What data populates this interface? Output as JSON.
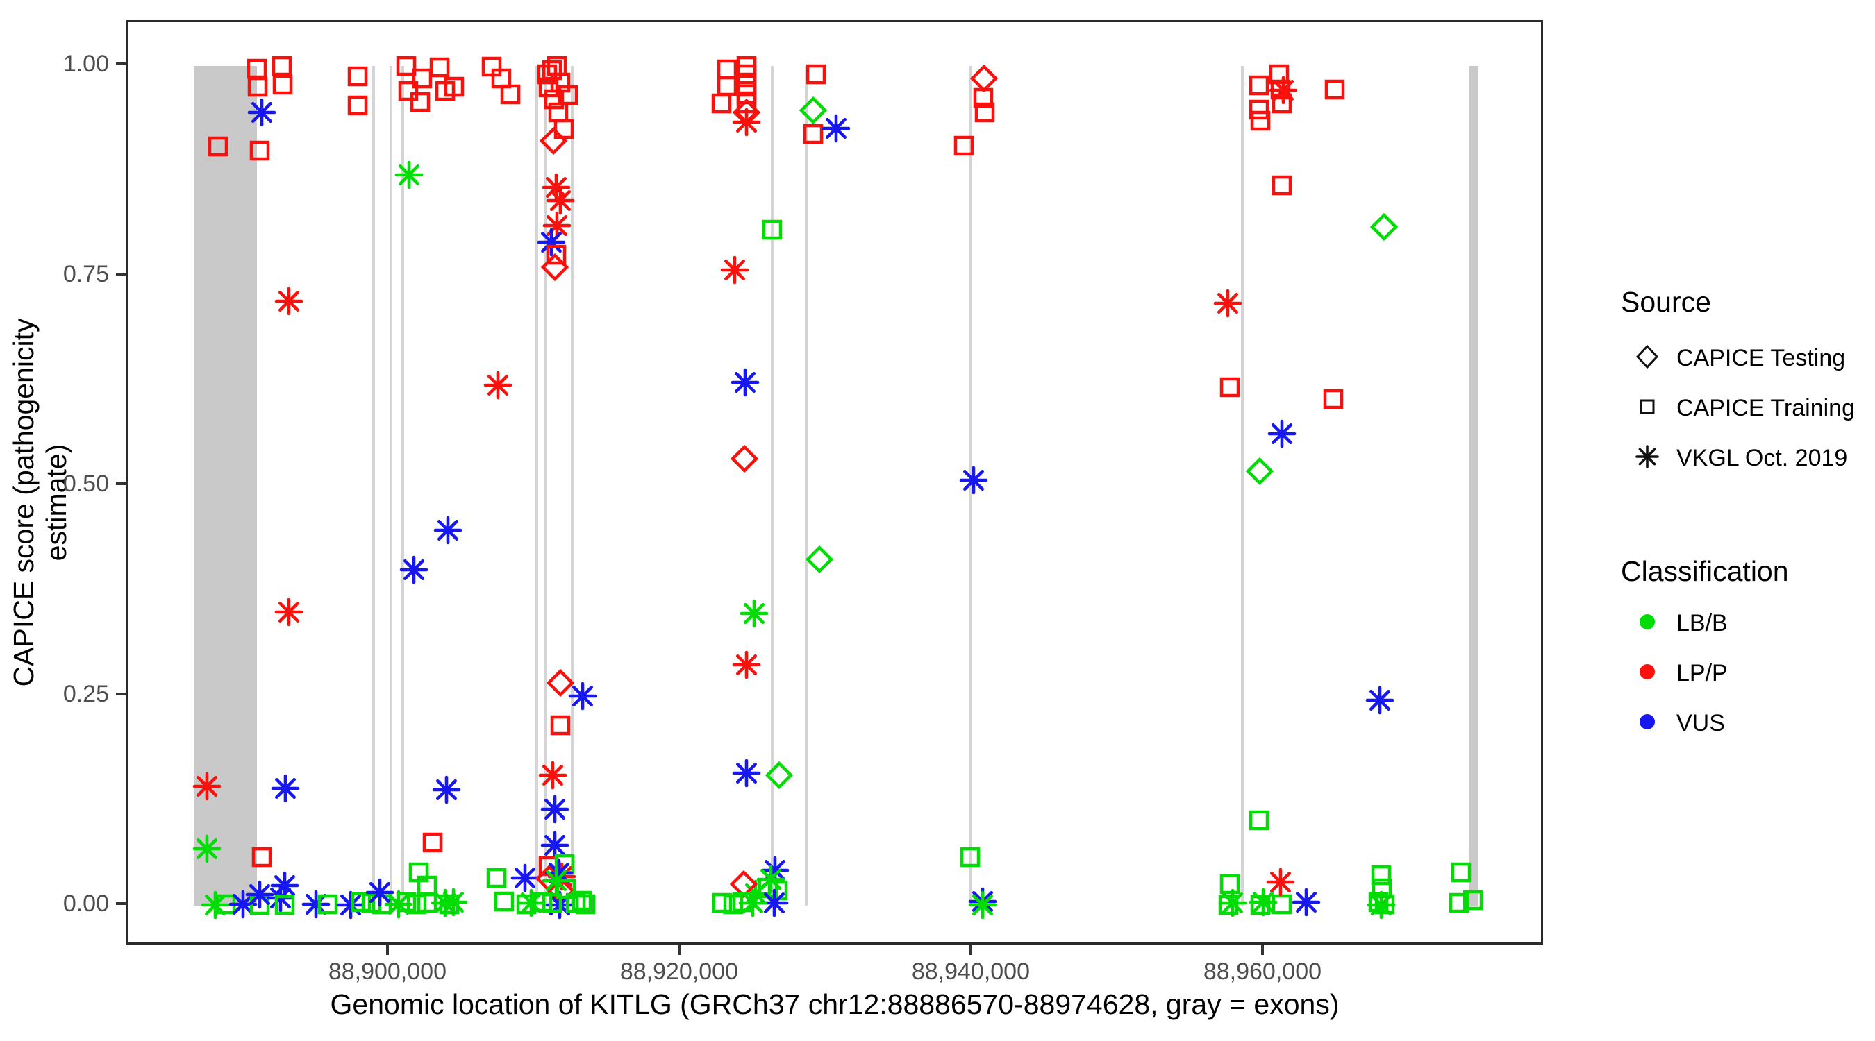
{
  "chart_data": {
    "type": "scatter",
    "xlabel": "Genomic location of KITLG (GRCh37 chr12:88886570-88974628, gray = exons)",
    "ylabel": "CAPICE score (pathogenicity estimate)",
    "x_domain": [
      88882100,
      88979240
    ],
    "y_domain": [
      0,
      1
    ],
    "x_ticks": [
      {
        "value": 88900000,
        "label": "88,900,000"
      },
      {
        "value": 88920000,
        "label": "88,920,000"
      },
      {
        "value": 88940000,
        "label": "88,940,000"
      },
      {
        "value": 88960000,
        "label": "88,960,000"
      }
    ],
    "y_ticks": [
      {
        "value": 0.0,
        "label": "0.00"
      },
      {
        "value": 0.25,
        "label": "0.25"
      },
      {
        "value": 0.5,
        "label": "0.50"
      },
      {
        "value": 0.75,
        "label": "0.75"
      },
      {
        "value": 1.0,
        "label": "1.00"
      }
    ],
    "grid": false,
    "legend_position": "right",
    "exon_note": "gray = exons",
    "exon_bands": [
      [
        88886570,
        88890900
      ],
      [
        88974030,
        88974650
      ]
    ],
    "exon_lines": [
      88898900,
      88900095,
      88900905,
      88910095,
      88910714,
      88912524,
      88926238,
      88928571,
      88939857,
      88958476
    ],
    "shape_key": {
      "sq": "CAPICE Training",
      "di": "CAPICE Testing",
      "as": "VKGL Oct. 2019"
    },
    "class_key": {
      "g": "LB/B",
      "r": "LP/P",
      "b": "VUS"
    },
    "colors": {
      "g": "#00dc04",
      "r": "#f8110d",
      "b": "#1717ef",
      "band": "#c9c9c9",
      "line": "#d4d4d4",
      "axis_text": "#4d4d4d",
      "border": "#2b2b2b"
    },
    "points": [
      [
        88887460,
        0.142,
        "as",
        "r"
      ],
      [
        88887460,
        0.068,
        "as",
        "g"
      ],
      [
        88888230,
        0.904,
        "sq",
        "r"
      ],
      [
        88888070,
        0.001,
        "as",
        "g"
      ],
      [
        88888780,
        0.002,
        "sq",
        "g"
      ],
      [
        88889970,
        0.002,
        "as",
        "b"
      ],
      [
        88890930,
        0.997,
        "sq",
        "r"
      ],
      [
        88890980,
        0.975,
        "sq",
        "r"
      ],
      [
        88891220,
        0.945,
        "as",
        "b"
      ],
      [
        88891120,
        0.899,
        "sq",
        "r"
      ],
      [
        88891250,
        0.058,
        "sq",
        "r"
      ],
      [
        88891110,
        0.001,
        "sq",
        "g"
      ],
      [
        88891110,
        0.013,
        "as",
        "b"
      ],
      [
        88892600,
        1.0,
        "sq",
        "r"
      ],
      [
        88892690,
        0.978,
        "sq",
        "r"
      ],
      [
        88893100,
        0.72,
        "as",
        "r"
      ],
      [
        88893100,
        0.35,
        "as",
        "r"
      ],
      [
        88892860,
        0.14,
        "as",
        "b"
      ],
      [
        88892820,
        0.024,
        "as",
        "b"
      ],
      [
        88892540,
        0.009,
        "as",
        "b"
      ],
      [
        88892820,
        0.001,
        "sq",
        "g"
      ],
      [
        88894960,
        0.002,
        "as",
        "b"
      ],
      [
        88895760,
        0.002,
        "sq",
        "g"
      ],
      [
        88897810,
        0.988,
        "sq",
        "r"
      ],
      [
        88897810,
        0.953,
        "sq",
        "r"
      ],
      [
        88897330,
        0.001,
        "as",
        "b"
      ],
      [
        88898050,
        0.004,
        "sq",
        "g"
      ],
      [
        88898760,
        0.003,
        "sq",
        "g"
      ],
      [
        88899470,
        0.002,
        "sq",
        "g"
      ],
      [
        88899330,
        0.016,
        "as",
        "b"
      ],
      [
        88900620,
        0.002,
        "as",
        "g"
      ],
      [
        88901140,
        0.004,
        "sq",
        "g"
      ],
      [
        88901850,
        0.002,
        "sq",
        "g"
      ],
      [
        88902560,
        0.003,
        "sq",
        "g"
      ],
      [
        88902000,
        0.04,
        "sq",
        "g"
      ],
      [
        88902570,
        0.024,
        "sq",
        "g"
      ],
      [
        88902950,
        0.075,
        "sq",
        "r"
      ],
      [
        88901330,
        0.87,
        "as",
        "g"
      ],
      [
        88901140,
        1.0,
        "sq",
        "r"
      ],
      [
        88901300,
        0.97,
        "sq",
        "r"
      ],
      [
        88902230,
        0.985,
        "sq",
        "r"
      ],
      [
        88902090,
        0.957,
        "sq",
        "r"
      ],
      [
        88901660,
        0.4,
        "as",
        "b"
      ],
      [
        88903900,
        0.138,
        "as",
        "b"
      ],
      [
        88903800,
        0.003,
        "as",
        "g"
      ],
      [
        88904100,
        0.002,
        "sq",
        "g"
      ],
      [
        88904400,
        0.004,
        "as",
        "g"
      ],
      [
        88904000,
        0.447,
        "as",
        "b"
      ],
      [
        88903420,
        0.998,
        "sq",
        "r"
      ],
      [
        88903800,
        0.97,
        "sq",
        "r"
      ],
      [
        88904420,
        0.975,
        "sq",
        "r"
      ],
      [
        88907000,
        0.999,
        "sq",
        "r"
      ],
      [
        88907660,
        0.985,
        "sq",
        "r"
      ],
      [
        88908280,
        0.966,
        "sq",
        "r"
      ],
      [
        88907430,
        0.62,
        "as",
        "r"
      ],
      [
        88907330,
        0.033,
        "sq",
        "g"
      ],
      [
        88907850,
        0.005,
        "sq",
        "g"
      ],
      [
        88909280,
        0.033,
        "as",
        "b"
      ],
      [
        88909400,
        0.002,
        "sq",
        "g"
      ],
      [
        88909700,
        0.003,
        "as",
        "g"
      ],
      [
        88910810,
        0.99,
        "sq",
        "r"
      ],
      [
        88910910,
        0.974,
        "sq",
        "r"
      ],
      [
        88911150,
        0.995,
        "sq",
        "r"
      ],
      [
        88911290,
        0.96,
        "sq",
        "r"
      ],
      [
        88911480,
        1.0,
        "sq",
        "r"
      ],
      [
        88911570,
        0.945,
        "sq",
        "r"
      ],
      [
        88911710,
        0.98,
        "sq",
        "r"
      ],
      [
        88911950,
        0.925,
        "sq",
        "r"
      ],
      [
        88912240,
        0.965,
        "sq",
        "r"
      ],
      [
        88911240,
        0.911,
        "di",
        "r"
      ],
      [
        88911430,
        0.855,
        "as",
        "r"
      ],
      [
        88911720,
        0.84,
        "as",
        "r"
      ],
      [
        88911480,
        0.81,
        "as",
        "r"
      ],
      [
        88911100,
        0.79,
        "as",
        "b"
      ],
      [
        88911430,
        0.775,
        "sq",
        "r"
      ],
      [
        88911330,
        0.76,
        "di",
        "r"
      ],
      [
        88911720,
        0.265,
        "di",
        "r"
      ],
      [
        88913240,
        0.25,
        "as",
        "b"
      ],
      [
        88911720,
        0.215,
        "sq",
        "r"
      ],
      [
        88911190,
        0.155,
        "as",
        "r"
      ],
      [
        88911330,
        0.115,
        "as",
        "b"
      ],
      [
        88911330,
        0.072,
        "as",
        "b"
      ],
      [
        88911810,
        0.035,
        "as",
        "r"
      ],
      [
        88910900,
        0.047,
        "sq",
        "r"
      ],
      [
        88910950,
        0.032,
        "di",
        "r"
      ],
      [
        88911760,
        0.017,
        "di",
        "r"
      ],
      [
        88911670,
        0.001,
        "as",
        "b"
      ],
      [
        88912000,
        0.05,
        "sq",
        "g"
      ],
      [
        88911620,
        0.039,
        "as",
        "b"
      ],
      [
        88911430,
        0.03,
        "as",
        "g"
      ],
      [
        88910480,
        0.004,
        "sq",
        "g"
      ],
      [
        88911140,
        0.003,
        "sq",
        "g"
      ],
      [
        88912100,
        0.02,
        "sq",
        "g"
      ],
      [
        88912770,
        0.003,
        "sq",
        "g"
      ],
      [
        88913440,
        0.002,
        "sq",
        "g"
      ],
      [
        88913200,
        0.006,
        "sq",
        "g"
      ],
      [
        88923140,
        0.996,
        "sq",
        "r"
      ],
      [
        88923140,
        0.976,
        "sq",
        "r"
      ],
      [
        88922760,
        0.955,
        "sq",
        "r"
      ],
      [
        88924470,
        1.0,
        "sq",
        "r"
      ],
      [
        88924470,
        0.99,
        "sq",
        "r"
      ],
      [
        88924470,
        0.978,
        "sq",
        "r"
      ],
      [
        88924470,
        0.966,
        "sq",
        "r"
      ],
      [
        88924470,
        0.955,
        "sq",
        "r"
      ],
      [
        88924470,
        0.945,
        "di",
        "r"
      ],
      [
        88924470,
        0.933,
        "as",
        "r"
      ],
      [
        88923660,
        0.757,
        "as",
        "r"
      ],
      [
        88926240,
        0.805,
        "sq",
        "g"
      ],
      [
        88924400,
        0.623,
        "as",
        "b"
      ],
      [
        88924350,
        0.532,
        "di",
        "r"
      ],
      [
        88924480,
        0.287,
        "as",
        "r"
      ],
      [
        88925000,
        0.348,
        "as",
        "g"
      ],
      [
        88929500,
        0.412,
        "di",
        "g"
      ],
      [
        88924480,
        0.158,
        "as",
        "b"
      ],
      [
        88926710,
        0.155,
        "di",
        "g"
      ],
      [
        88925100,
        0.014,
        "as",
        "g"
      ],
      [
        88924290,
        0.026,
        "di",
        "r"
      ],
      [
        88926430,
        0.042,
        "as",
        "b"
      ],
      [
        88926140,
        0.031,
        "as",
        "g"
      ],
      [
        88925950,
        0.021,
        "sq",
        "g"
      ],
      [
        88926600,
        0.018,
        "sq",
        "g"
      ],
      [
        88926380,
        0.003,
        "as",
        "b"
      ],
      [
        88922810,
        0.003,
        "sq",
        "g"
      ],
      [
        88923570,
        0.002,
        "sq",
        "g"
      ],
      [
        88924200,
        0.004,
        "sq",
        "g"
      ],
      [
        88924900,
        0.003,
        "as",
        "g"
      ],
      [
        88929260,
        0.99,
        "sq",
        "r"
      ],
      [
        88929070,
        0.947,
        "di",
        "g"
      ],
      [
        88929070,
        0.919,
        "sq",
        "r"
      ],
      [
        88930600,
        0.926,
        "as",
        "b"
      ],
      [
        88939400,
        0.905,
        "sq",
        "r"
      ],
      [
        88940760,
        0.985,
        "di",
        "r"
      ],
      [
        88940710,
        0.962,
        "sq",
        "r"
      ],
      [
        88940810,
        0.945,
        "sq",
        "r"
      ],
      [
        88940050,
        0.507,
        "as",
        "b"
      ],
      [
        88939800,
        0.058,
        "sq",
        "g"
      ],
      [
        88940660,
        0.005,
        "as",
        "b"
      ],
      [
        88940660,
        0.001,
        "as",
        "g"
      ],
      [
        88957460,
        0.717,
        "as",
        "r"
      ],
      [
        88957600,
        0.617,
        "sq",
        "r"
      ],
      [
        88959620,
        0.977,
        "sq",
        "r"
      ],
      [
        88959620,
        0.948,
        "sq",
        "r"
      ],
      [
        88959710,
        0.935,
        "sq",
        "r"
      ],
      [
        88961000,
        0.99,
        "sq",
        "r"
      ],
      [
        88961100,
        0.972,
        "sq",
        "r"
      ],
      [
        88961190,
        0.955,
        "sq",
        "r"
      ],
      [
        88961290,
        0.971,
        "as",
        "r"
      ],
      [
        88961190,
        0.858,
        "sq",
        "r"
      ],
      [
        88959670,
        0.517,
        "di",
        "g"
      ],
      [
        88961190,
        0.562,
        "as",
        "b"
      ],
      [
        88964810,
        0.972,
        "sq",
        "r"
      ],
      [
        88964710,
        0.603,
        "sq",
        "r"
      ],
      [
        88959620,
        0.102,
        "sq",
        "g"
      ],
      [
        88957600,
        0.026,
        "sq",
        "g"
      ],
      [
        88957530,
        0.001,
        "sq",
        "g"
      ],
      [
        88957800,
        0.003,
        "as",
        "g"
      ],
      [
        88959700,
        0.001,
        "sq",
        "g"
      ],
      [
        88959900,
        0.004,
        "as",
        "g"
      ],
      [
        88961190,
        0.002,
        "sq",
        "g"
      ],
      [
        88961100,
        0.028,
        "as",
        "r"
      ],
      [
        88962860,
        0.004,
        "as",
        "b"
      ],
      [
        88968200,
        0.808,
        "di",
        "g"
      ],
      [
        88967900,
        0.245,
        "as",
        "b"
      ],
      [
        88968000,
        0.036,
        "sq",
        "g"
      ],
      [
        88968050,
        0.021,
        "sq",
        "g"
      ],
      [
        88968000,
        0.001,
        "as",
        "g"
      ],
      [
        88968250,
        0.002,
        "sq",
        "g"
      ],
      [
        88967800,
        0.004,
        "sq",
        "g"
      ],
      [
        88973470,
        0.04,
        "sq",
        "g"
      ],
      [
        88973330,
        0.003,
        "sq",
        "g"
      ],
      [
        88974280,
        0.007,
        "sq",
        "g"
      ]
    ]
  },
  "legend": {
    "source_title": "Source",
    "source_items": [
      {
        "shape": "diamond",
        "label": "CAPICE Testing"
      },
      {
        "shape": "square",
        "label": "CAPICE Training"
      },
      {
        "shape": "asterisk",
        "label": "VKGL Oct. 2019"
      }
    ],
    "class_title": "Classification",
    "class_items": [
      {
        "key": "g",
        "label": "LB/B",
        "color": "#00dc04"
      },
      {
        "key": "r",
        "label": "LP/P",
        "color": "#f8110d"
      },
      {
        "key": "b",
        "label": "VUS",
        "color": "#1717ef"
      }
    ]
  }
}
